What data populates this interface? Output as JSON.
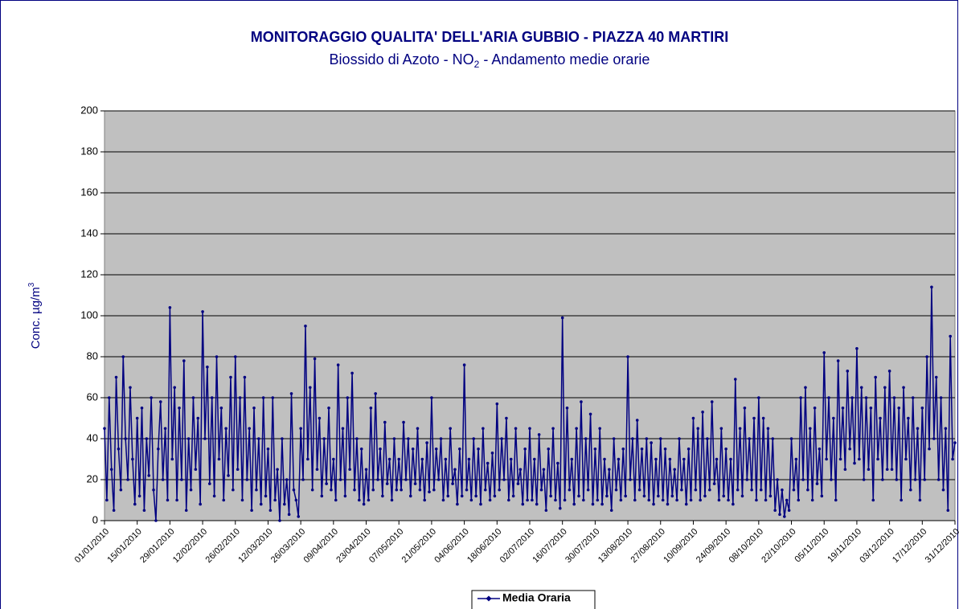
{
  "chart_data": {
    "type": "line",
    "title": "MONITORAGGIO QUALITA' DELL'ARIA GUBBIO - PIAZZA 40 MARTIRI",
    "subtitle": [
      "Biossido di Azoto - NO",
      "2",
      " - Andamento medie orarie"
    ],
    "y_label": [
      "Conc.  µg/m",
      "3"
    ],
    "categories": [
      "01/01/2010",
      null,
      null,
      null,
      null,
      null,
      null,
      null,
      null,
      null,
      null,
      null,
      null,
      null,
      "15/01/2010",
      null,
      null,
      null,
      null,
      null,
      null,
      null,
      null,
      null,
      null,
      null,
      null,
      null,
      "29/01/2010",
      null,
      null,
      null,
      null,
      null,
      null,
      null,
      null,
      null,
      null,
      null,
      null,
      null,
      "12/02/2010",
      null,
      null,
      null,
      null,
      null,
      null,
      null,
      null,
      null,
      null,
      null,
      null,
      null,
      "26/02/2010",
      null,
      null,
      null,
      null,
      null,
      null,
      null,
      null,
      null,
      null,
      null,
      null,
      null,
      "12/03/2010",
      null,
      null,
      null,
      null,
      null,
      null,
      null,
      null,
      null,
      null,
      null,
      null,
      null,
      "26/03/2010",
      null,
      null,
      null,
      null,
      null,
      null,
      null,
      null,
      null,
      null,
      null,
      null,
      null,
      "09/04/2010",
      null,
      null,
      null,
      null,
      null,
      null,
      null,
      null,
      null,
      null,
      null,
      null,
      null,
      "23/04/2010",
      null,
      null,
      null,
      null,
      null,
      null,
      null,
      null,
      null,
      null,
      null,
      null,
      null,
      "07/05/2010",
      null,
      null,
      null,
      null,
      null,
      null,
      null,
      null,
      null,
      null,
      null,
      null,
      null,
      "21/05/2010",
      null,
      null,
      null,
      null,
      null,
      null,
      null,
      null,
      null,
      null,
      null,
      null,
      null,
      "04/06/2010",
      null,
      null,
      null,
      null,
      null,
      null,
      null,
      null,
      null,
      null,
      null,
      null,
      null,
      "18/06/2010",
      null,
      null,
      null,
      null,
      null,
      null,
      null,
      null,
      null,
      null,
      null,
      null,
      null,
      "02/07/2010",
      null,
      null,
      null,
      null,
      null,
      null,
      null,
      null,
      null,
      null,
      null,
      null,
      null,
      "16/07/2010",
      null,
      null,
      null,
      null,
      null,
      null,
      null,
      null,
      null,
      null,
      null,
      null,
      null,
      "30/07/2010",
      null,
      null,
      null,
      null,
      null,
      null,
      null,
      null,
      null,
      null,
      null,
      null,
      null,
      "13/08/2010",
      null,
      null,
      null,
      null,
      null,
      null,
      null,
      null,
      null,
      null,
      null,
      null,
      null,
      "27/08/2010",
      null,
      null,
      null,
      null,
      null,
      null,
      null,
      null,
      null,
      null,
      null,
      null,
      null,
      "10/09/2010",
      null,
      null,
      null,
      null,
      null,
      null,
      null,
      null,
      null,
      null,
      null,
      null,
      null,
      "24/09/2010",
      null,
      null,
      null,
      null,
      null,
      null,
      null,
      null,
      null,
      null,
      null,
      null,
      null,
      "08/10/2010",
      null,
      null,
      null,
      null,
      null,
      null,
      null,
      null,
      null,
      null,
      null,
      null,
      null,
      "22/10/2010",
      null,
      null,
      null,
      null,
      null,
      null,
      null,
      null,
      null,
      null,
      null,
      null,
      null,
      "05/11/2010",
      null,
      null,
      null,
      null,
      null,
      null,
      null,
      null,
      null,
      null,
      null,
      null,
      null,
      "19/11/2010",
      null,
      null,
      null,
      null,
      null,
      null,
      null,
      null,
      null,
      null,
      null,
      null,
      null,
      "03/12/2010",
      null,
      null,
      null,
      null,
      null,
      null,
      null,
      null,
      null,
      null,
      null,
      null,
      null,
      "17/12/2010",
      null,
      null,
      null,
      null,
      null,
      null,
      null,
      null,
      null,
      null,
      null,
      null,
      null,
      "31/12/2010"
    ],
    "series": [
      {
        "name": "Media Oraria",
        "color": "#000080",
        "values": [
          45,
          10,
          60,
          25,
          5,
          70,
          35,
          15,
          80,
          40,
          20,
          65,
          30,
          8,
          50,
          12,
          55,
          5,
          40,
          22,
          60,
          15,
          0,
          35,
          58,
          20,
          45,
          10,
          104,
          30,
          65,
          10,
          55,
          20,
          78,
          5,
          40,
          15,
          60,
          25,
          50,
          8,
          102,
          40,
          75,
          18,
          60,
          12,
          80,
          30,
          55,
          10,
          45,
          22,
          70,
          15,
          80,
          25,
          60,
          10,
          70,
          20,
          45,
          5,
          55,
          15,
          40,
          8,
          60,
          12,
          35,
          5,
          60,
          10,
          25,
          0,
          40,
          8,
          20,
          3,
          62,
          15,
          10,
          2,
          45,
          20,
          95,
          30,
          65,
          15,
          79,
          25,
          50,
          12,
          40,
          18,
          55,
          15,
          30,
          10,
          76,
          20,
          45,
          12,
          60,
          25,
          72,
          15,
          40,
          10,
          35,
          8,
          25,
          10,
          55,
          15,
          62,
          20,
          35,
          12,
          48,
          18,
          30,
          10,
          40,
          15,
          30,
          15,
          48,
          20,
          40,
          12,
          35,
          18,
          45,
          15,
          30,
          10,
          38,
          14,
          60,
          15,
          35,
          20,
          40,
          10,
          30,
          12,
          45,
          18,
          25,
          8,
          35,
          12,
          76,
          15,
          30,
          10,
          40,
          12,
          35,
          8,
          45,
          15,
          28,
          10,
          33,
          12,
          57,
          15,
          40,
          20,
          50,
          10,
          30,
          12,
          45,
          18,
          25,
          8,
          35,
          10,
          45,
          10,
          30,
          8,
          42,
          15,
          25,
          5,
          35,
          12,
          45,
          10,
          28,
          6,
          99,
          10,
          55,
          15,
          30,
          8,
          45,
          12,
          58,
          10,
          40,
          15,
          52,
          8,
          35,
          10,
          45,
          8,
          30,
          12,
          25,
          5,
          40,
          15,
          30,
          10,
          35,
          12,
          80,
          20,
          40,
          10,
          49,
          15,
          35,
          12,
          40,
          10,
          38,
          8,
          30,
          12,
          40,
          10,
          35,
          8,
          30,
          12,
          25,
          10,
          40,
          15,
          30,
          8,
          35,
          10,
          50,
          15,
          45,
          10,
          53,
          12,
          40,
          15,
          58,
          18,
          30,
          10,
          45,
          12,
          35,
          10,
          30,
          8,
          69,
          15,
          45,
          12,
          55,
          20,
          40,
          15,
          50,
          10,
          60,
          15,
          50,
          10,
          45,
          12,
          40,
          5,
          20,
          3,
          15,
          2,
          10,
          5,
          40,
          15,
          30,
          10,
          60,
          20,
          65,
          15,
          45,
          10,
          55,
          18,
          35,
          12,
          82,
          30,
          60,
          20,
          50,
          10,
          78,
          30,
          55,
          25,
          73,
          35,
          60,
          28,
          84,
          30,
          65,
          20,
          60,
          25,
          55,
          10,
          70,
          30,
          50,
          20,
          65,
          25,
          73,
          25,
          60,
          20,
          55,
          10,
          65,
          30,
          50,
          15,
          60,
          20,
          45,
          10,
          55,
          20,
          80,
          35,
          114,
          40,
          70,
          20,
          60,
          15,
          45,
          5,
          90,
          30,
          38
        ]
      }
    ],
    "ylim": [
      0,
      200
    ],
    "yticks": [
      0,
      20,
      40,
      60,
      80,
      100,
      120,
      140,
      160,
      180,
      200
    ],
    "grid": true,
    "plot_background": "#c0c0c0",
    "legend": "bottom"
  }
}
